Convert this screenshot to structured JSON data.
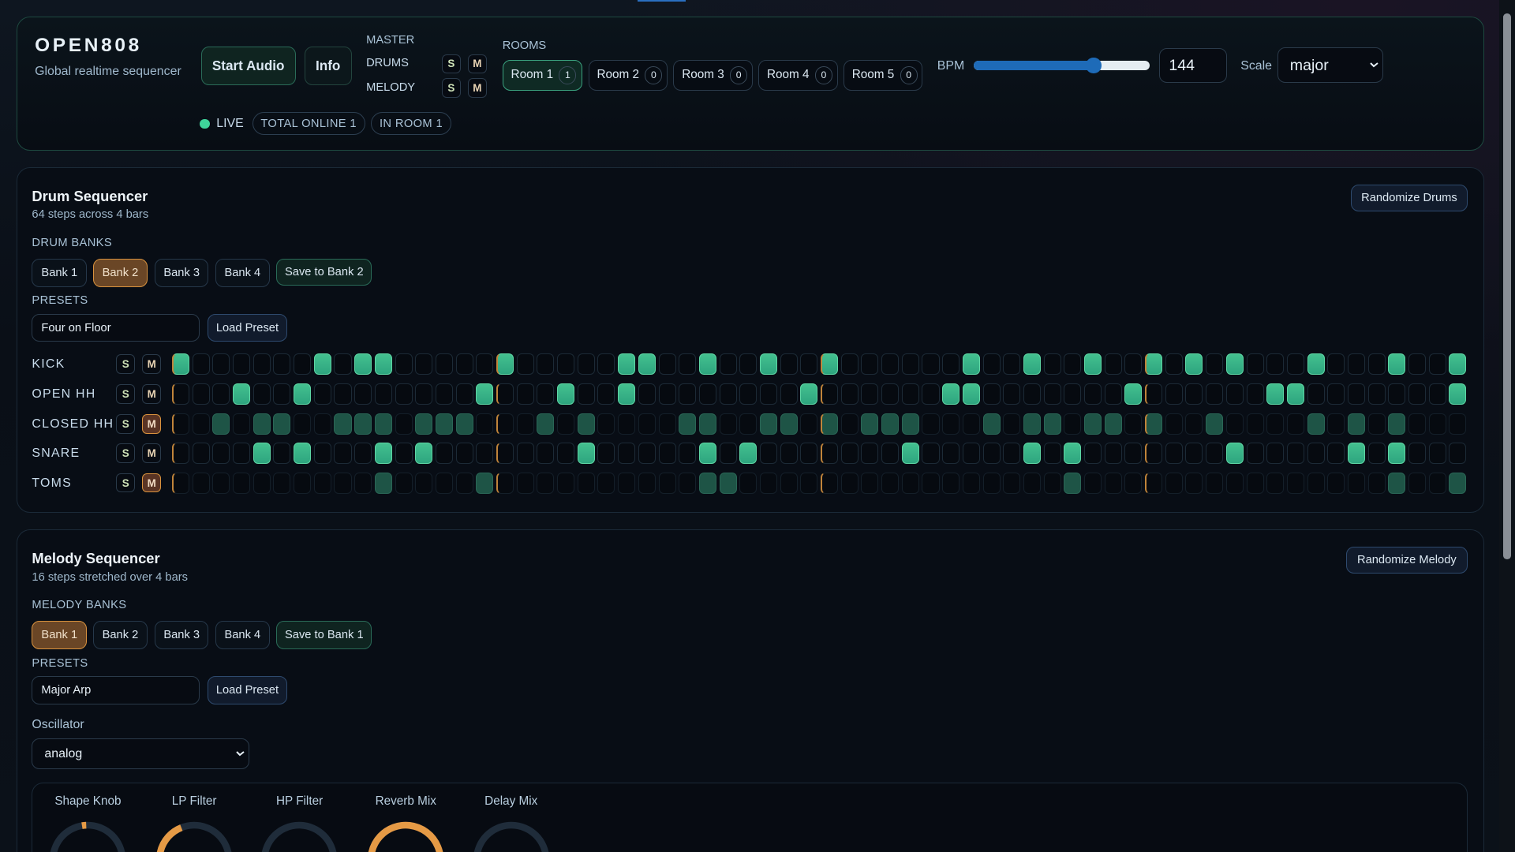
{
  "header": {
    "title": "OPEN808",
    "subtitle": "Global realtime sequencer",
    "start_audio": "Start Audio",
    "info": "Info",
    "master_label": "MASTER",
    "drums_label": "DRUMS",
    "melody_label": "MELODY",
    "solo": "S",
    "mute": "M",
    "rooms_label": "ROOMS",
    "rooms": [
      {
        "label": "Room 1",
        "count": "1",
        "active": true
      },
      {
        "label": "Room 2",
        "count": "0"
      },
      {
        "label": "Room 3",
        "count": "0"
      },
      {
        "label": "Room 4",
        "count": "0"
      },
      {
        "label": "Room 5",
        "count": "0"
      }
    ],
    "bpm_label": "BPM",
    "bpm_value": "144",
    "bpm_slider_fraction": 0.68,
    "scale_label": "Scale",
    "scale_value": "major",
    "live_label": "LIVE",
    "total_online": "TOTAL ONLINE 1",
    "in_room": "IN ROOM 1"
  },
  "drum": {
    "title": "Drum Sequencer",
    "subtitle": "64 steps across 4 bars",
    "randomize": "Randomize Drums",
    "banks_label": "DRUM BANKS",
    "banks": [
      "Bank 1",
      "Bank 2",
      "Bank 3",
      "Bank 4"
    ],
    "active_bank": 1,
    "save": "Save to Bank 2",
    "presets_label": "PRESETS",
    "preset_value": "Four on Floor",
    "load": "Load Preset",
    "tracks": [
      {
        "name": "KICK",
        "muted": false,
        "steps": [
          0,
          7,
          9,
          10,
          16,
          22,
          23,
          26,
          29,
          32,
          39,
          42,
          45,
          48,
          50,
          52,
          56,
          60,
          63
        ]
      },
      {
        "name": "OPEN HH",
        "muted": false,
        "steps": [
          3,
          6,
          15,
          19,
          22,
          31,
          38,
          39,
          47,
          54,
          55,
          63
        ]
      },
      {
        "name": "CLOSED HH",
        "muted": true,
        "steps": [
          2,
          4,
          5,
          8,
          9,
          10,
          12,
          13,
          14,
          18,
          20,
          25,
          26,
          29,
          30,
          32,
          34,
          35,
          36,
          40,
          42,
          43,
          45,
          46,
          48,
          51,
          56,
          58,
          60
        ]
      },
      {
        "name": "SNARE",
        "muted": false,
        "steps": [
          4,
          6,
          10,
          12,
          20,
          26,
          28,
          36,
          42,
          44,
          52,
          58,
          60
        ]
      },
      {
        "name": "TOMS",
        "muted": true,
        "steps": [
          10,
          15,
          26,
          27,
          44,
          60,
          63
        ]
      }
    ]
  },
  "melody": {
    "title": "Melody Sequencer",
    "subtitle": "16 steps stretched over 4 bars",
    "randomize": "Randomize Melody",
    "banks_label": "MELODY BANKS",
    "banks": [
      "Bank 1",
      "Bank 2",
      "Bank 3",
      "Bank 4"
    ],
    "active_bank": 0,
    "save": "Save to Bank 1",
    "presets_label": "PRESETS",
    "preset_value": "Major Arp",
    "load": "Load Preset",
    "osc_label": "Oscillator",
    "osc_value": "analog",
    "knobs": [
      {
        "label": "Shape Knob",
        "value": 0.48,
        "mode": "marker"
      },
      {
        "label": "LP Filter",
        "value": 0.42
      },
      {
        "label": "HP Filter",
        "value": 0
      },
      {
        "label": "Reverb Mix",
        "value": 0.85
      },
      {
        "label": "Delay Mix",
        "value": 0
      }
    ]
  },
  "colors": {
    "accent": "#43c08f",
    "warn": "#e59a45",
    "slider": "#1e6bb8"
  }
}
